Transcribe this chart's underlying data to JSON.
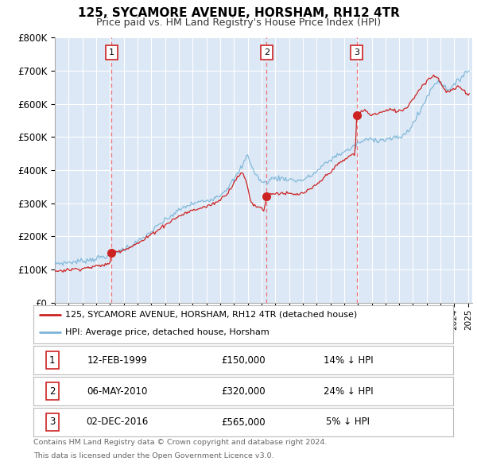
{
  "title": "125, SYCAMORE AVENUE, HORSHAM, RH12 4TR",
  "subtitle": "Price paid vs. HM Land Registry's House Price Index (HPI)",
  "sale_dates_float": [
    1999.12,
    2010.37,
    2016.92
  ],
  "sale_prices": [
    150000,
    320000,
    565000
  ],
  "sale_labels": [
    "1",
    "2",
    "3"
  ],
  "legend_line1": "125, SYCAMORE AVENUE, HORSHAM, RH12 4TR (detached house)",
  "legend_line2": "HPI: Average price, detached house, Horsham",
  "table_rows": [
    {
      "label": "1",
      "date": "12-FEB-1999",
      "price": "£150,000",
      "hpi": "14% ↓ HPI"
    },
    {
      "label": "2",
      "date": "06-MAY-2010",
      "price": "£320,000",
      "hpi": "24% ↓ HPI"
    },
    {
      "label": "3",
      "date": "02-DEC-2016",
      "price": "£565,000",
      "hpi": "5% ↓ HPI"
    }
  ],
  "footnote1": "Contains HM Land Registry data © Crown copyright and database right 2024.",
  "footnote2": "This data is licensed under the Open Government Licence v3.0.",
  "hpi_color": "#7ab4d8",
  "price_color": "#cc2222",
  "vline_color": "#ee6666",
  "plot_bg": "#dce8f5",
  "grid_color": "#ffffff",
  "ylim": [
    0,
    800000
  ],
  "xlim_start": 1995.0,
  "xlim_end": 2025.3,
  "hpi_anchors": [
    [
      1995.0,
      118000
    ],
    [
      1995.5,
      119000
    ],
    [
      1996.0,
      121000
    ],
    [
      1996.5,
      123000
    ],
    [
      1997.0,
      126000
    ],
    [
      1997.5,
      129000
    ],
    [
      1998.0,
      133000
    ],
    [
      1998.5,
      138000
    ],
    [
      1999.0,
      143000
    ],
    [
      1999.5,
      152000
    ],
    [
      2000.0,
      161000
    ],
    [
      2000.5,
      172000
    ],
    [
      2001.0,
      183000
    ],
    [
      2001.5,
      197000
    ],
    [
      2002.0,
      214000
    ],
    [
      2002.5,
      232000
    ],
    [
      2003.0,
      248000
    ],
    [
      2003.5,
      263000
    ],
    [
      2004.0,
      278000
    ],
    [
      2004.5,
      290000
    ],
    [
      2005.0,
      298000
    ],
    [
      2005.5,
      303000
    ],
    [
      2006.0,
      308000
    ],
    [
      2006.5,
      315000
    ],
    [
      2007.0,
      325000
    ],
    [
      2007.5,
      345000
    ],
    [
      2007.8,
      360000
    ],
    [
      2008.0,
      370000
    ],
    [
      2008.3,
      390000
    ],
    [
      2008.5,
      405000
    ],
    [
      2008.7,
      420000
    ],
    [
      2008.9,
      440000
    ],
    [
      2009.0,
      450000
    ],
    [
      2009.2,
      420000
    ],
    [
      2009.4,
      400000
    ],
    [
      2009.6,
      385000
    ],
    [
      2009.8,
      375000
    ],
    [
      2010.0,
      365000
    ],
    [
      2010.2,
      360000
    ],
    [
      2010.4,
      365000
    ],
    [
      2010.6,
      370000
    ],
    [
      2010.8,
      375000
    ],
    [
      2011.0,
      375000
    ],
    [
      2011.5,
      375000
    ],
    [
      2012.0,
      372000
    ],
    [
      2012.5,
      368000
    ],
    [
      2013.0,
      370000
    ],
    [
      2013.5,
      380000
    ],
    [
      2014.0,
      395000
    ],
    [
      2014.5,
      415000
    ],
    [
      2015.0,
      430000
    ],
    [
      2015.5,
      445000
    ],
    [
      2016.0,
      455000
    ],
    [
      2016.5,
      465000
    ],
    [
      2017.0,
      480000
    ],
    [
      2017.5,
      490000
    ],
    [
      2018.0,
      495000
    ],
    [
      2018.5,
      490000
    ],
    [
      2019.0,
      492000
    ],
    [
      2019.5,
      495000
    ],
    [
      2020.0,
      498000
    ],
    [
      2020.5,
      510000
    ],
    [
      2021.0,
      540000
    ],
    [
      2021.5,
      575000
    ],
    [
      2022.0,
      620000
    ],
    [
      2022.5,
      655000
    ],
    [
      2022.8,
      670000
    ],
    [
      2023.0,
      665000
    ],
    [
      2023.3,
      650000
    ],
    [
      2023.6,
      645000
    ],
    [
      2024.0,
      655000
    ],
    [
      2024.3,
      670000
    ],
    [
      2024.6,
      685000
    ],
    [
      2024.8,
      700000
    ],
    [
      2025.0,
      695000
    ]
  ],
  "price_anchors": [
    [
      1995.0,
      95000
    ],
    [
      1995.5,
      97000
    ],
    [
      1996.0,
      99000
    ],
    [
      1996.5,
      101000
    ],
    [
      1997.0,
      103000
    ],
    [
      1997.5,
      106000
    ],
    [
      1998.0,
      109000
    ],
    [
      1998.5,
      113000
    ],
    [
      1999.0,
      118000
    ],
    [
      1999.12,
      150000
    ],
    [
      1999.5,
      154000
    ],
    [
      2000.0,
      160000
    ],
    [
      2000.5,
      168000
    ],
    [
      2001.0,
      178000
    ],
    [
      2001.5,
      190000
    ],
    [
      2002.0,
      206000
    ],
    [
      2002.5,
      220000
    ],
    [
      2003.0,
      234000
    ],
    [
      2003.5,
      248000
    ],
    [
      2004.0,
      260000
    ],
    [
      2004.5,
      270000
    ],
    [
      2005.0,
      278000
    ],
    [
      2005.5,
      284000
    ],
    [
      2006.0,
      290000
    ],
    [
      2006.5,
      298000
    ],
    [
      2007.0,
      310000
    ],
    [
      2007.5,
      330000
    ],
    [
      2007.8,
      345000
    ],
    [
      2008.0,
      365000
    ],
    [
      2008.3,
      380000
    ],
    [
      2008.5,
      390000
    ],
    [
      2008.7,
      385000
    ],
    [
      2008.9,
      365000
    ],
    [
      2009.0,
      345000
    ],
    [
      2009.2,
      310000
    ],
    [
      2009.4,
      295000
    ],
    [
      2009.6,
      290000
    ],
    [
      2009.8,
      290000
    ],
    [
      2010.0,
      285000
    ],
    [
      2010.2,
      280000
    ],
    [
      2010.37,
      320000
    ],
    [
      2010.5,
      325000
    ],
    [
      2010.7,
      328000
    ],
    [
      2011.0,
      330000
    ],
    [
      2011.5,
      330000
    ],
    [
      2012.0,
      328000
    ],
    [
      2012.5,
      325000
    ],
    [
      2013.0,
      330000
    ],
    [
      2013.5,
      340000
    ],
    [
      2014.0,
      355000
    ],
    [
      2014.5,
      375000
    ],
    [
      2015.0,
      395000
    ],
    [
      2015.5,
      415000
    ],
    [
      2016.0,
      430000
    ],
    [
      2016.5,
      445000
    ],
    [
      2016.8,
      448000
    ],
    [
      2016.92,
      565000
    ],
    [
      2017.0,
      570000
    ],
    [
      2017.2,
      575000
    ],
    [
      2017.5,
      580000
    ],
    [
      2017.8,
      572000
    ],
    [
      2018.0,
      565000
    ],
    [
      2018.3,
      570000
    ],
    [
      2018.5,
      572000
    ],
    [
      2018.8,
      575000
    ],
    [
      2019.0,
      578000
    ],
    [
      2019.3,
      582000
    ],
    [
      2019.6,
      580000
    ],
    [
      2020.0,
      578000
    ],
    [
      2020.3,
      582000
    ],
    [
      2020.6,
      592000
    ],
    [
      2021.0,
      615000
    ],
    [
      2021.5,
      645000
    ],
    [
      2022.0,
      670000
    ],
    [
      2022.5,
      685000
    ],
    [
      2022.8,
      680000
    ],
    [
      2023.0,
      665000
    ],
    [
      2023.3,
      640000
    ],
    [
      2023.6,
      635000
    ],
    [
      2024.0,
      645000
    ],
    [
      2024.3,
      650000
    ],
    [
      2024.6,
      645000
    ],
    [
      2024.8,
      635000
    ],
    [
      2025.0,
      630000
    ]
  ]
}
